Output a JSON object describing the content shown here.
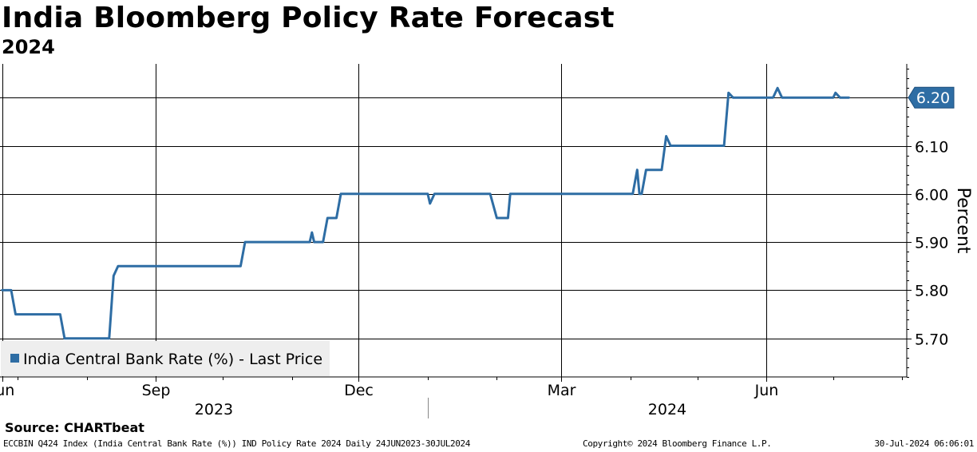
{
  "header": {
    "title": "India Bloomberg Policy Rate Forecast",
    "subtitle": "2024"
  },
  "footer": {
    "source": "Source: CHARTbeat",
    "ticker": "ECCBIN Q424 Index (India Central Bank Rate (%)) IND Policy Rate 2024  Daily 24JUN2023-30JUL2024",
    "copyright": "Copyright© 2024 Bloomberg Finance L.P.",
    "timestamp": "30-Jul-2024 06:06:01"
  },
  "colors": {
    "series": "#2e6da4",
    "grid": "#000000",
    "legend_bg": "#eeeeee"
  },
  "chart_data": {
    "type": "line",
    "title": "India Bloomberg Policy Rate Forecast",
    "subtitle": "2024",
    "xlabel": "",
    "ylabel": "Percent",
    "ylim": [
      5.62,
      6.27
    ],
    "xlim": [
      "2023-06-23",
      "2024-08-03"
    ],
    "yticks": [
      5.7,
      5.8,
      5.9,
      6.0,
      6.1,
      6.2
    ],
    "ytick_labels": [
      "5.70",
      "5.80",
      "5.90",
      "6.00",
      "6.10",
      "6.20"
    ],
    "xticks": [
      {
        "date": "2023-06-24",
        "label": "Jun"
      },
      {
        "date": "2023-09-01",
        "label": "Sep"
      },
      {
        "date": "2023-12-01",
        "label": "Dec"
      },
      {
        "date": "2024-03-01",
        "label": "Mar"
      },
      {
        "date": "2024-06-01",
        "label": "Jun"
      }
    ],
    "year_labels": [
      {
        "label": "2023",
        "start": "2023-06-24",
        "end": "2023-12-31"
      },
      {
        "label": "2024",
        "start": "2024-01-01",
        "end": "2024-08-03"
      }
    ],
    "grid": true,
    "legend": {
      "position": "bottom-left",
      "entries": [
        "India Central Bank Rate (%) - Last Price"
      ]
    },
    "last_value_label": "6.20",
    "series": [
      {
        "name": "India Central Bank Rate (%) - Last Price",
        "points": [
          [
            "2023-06-24",
            5.8
          ],
          [
            "2023-06-28",
            5.8
          ],
          [
            "2023-06-30",
            5.75
          ],
          [
            "2023-07-20",
            5.75
          ],
          [
            "2023-07-22",
            5.7
          ],
          [
            "2023-08-11",
            5.7
          ],
          [
            "2023-08-13",
            5.83
          ],
          [
            "2023-08-15",
            5.85
          ],
          [
            "2023-10-09",
            5.85
          ],
          [
            "2023-10-11",
            5.9
          ],
          [
            "2023-11-09",
            5.9
          ],
          [
            "2023-11-10",
            5.92
          ],
          [
            "2023-11-11",
            5.9
          ],
          [
            "2023-11-15",
            5.9
          ],
          [
            "2023-11-17",
            5.95
          ],
          [
            "2023-11-21",
            5.95
          ],
          [
            "2023-11-23",
            6.0
          ],
          [
            "2024-01-01",
            6.0
          ],
          [
            "2024-01-02",
            5.98
          ],
          [
            "2024-01-04",
            6.0
          ],
          [
            "2024-01-29",
            6.0
          ],
          [
            "2024-02-01",
            5.95
          ],
          [
            "2024-02-06",
            5.95
          ],
          [
            "2024-02-07",
            6.0
          ],
          [
            "2024-04-02",
            6.0
          ],
          [
            "2024-04-04",
            6.05
          ],
          [
            "2024-04-05",
            6.0
          ],
          [
            "2024-04-06",
            6.0
          ],
          [
            "2024-04-08",
            6.05
          ],
          [
            "2024-04-15",
            6.05
          ],
          [
            "2024-04-17",
            6.12
          ],
          [
            "2024-04-19",
            6.1
          ],
          [
            "2024-05-13",
            6.1
          ],
          [
            "2024-05-15",
            6.21
          ],
          [
            "2024-05-17",
            6.2
          ],
          [
            "2024-06-04",
            6.2
          ],
          [
            "2024-06-06",
            6.22
          ],
          [
            "2024-06-08",
            6.2
          ],
          [
            "2024-07-01",
            6.2
          ],
          [
            "2024-07-02",
            6.21
          ],
          [
            "2024-07-04",
            6.2
          ],
          [
            "2024-07-08",
            6.2
          ]
        ]
      }
    ]
  }
}
